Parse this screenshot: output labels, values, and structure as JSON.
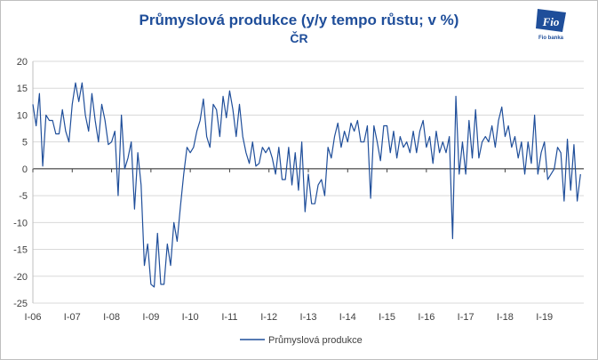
{
  "title": "Průmyslová produkce (y/y tempo růstu; v %)",
  "subtitle": "ČR",
  "logo_text": "Fio banka",
  "colors": {
    "series": "#1f4e9a",
    "grid": "#d9d9d9",
    "title": "#1f4e9a",
    "axis_text": "#404040"
  },
  "chart_data": {
    "type": "line",
    "title": "Průmyslová produkce (y/y tempo růstu; v %)",
    "subtitle": "ČR",
    "xlabel": "",
    "ylabel": "",
    "ylim": [
      -25,
      20
    ],
    "yticks": [
      20,
      15,
      10,
      5,
      0,
      -5,
      -10,
      -15,
      -20,
      -25
    ],
    "xtick_labels": [
      "I-06",
      "I-07",
      "I-08",
      "I-09",
      "I-10",
      "I-11",
      "I-12",
      "I-13",
      "I-14",
      "I-15",
      "I-16",
      "I-17",
      "I-18",
      "I-19"
    ],
    "grid": "horizontal",
    "legend_position": "bottom",
    "series": [
      {
        "name": "Průmyslová produkce",
        "start": "2006-01",
        "frequency": "monthly",
        "values": [
          12,
          8,
          14,
          0.5,
          10,
          9,
          9,
          6.5,
          6.5,
          11,
          7,
          5,
          12,
          16,
          12.5,
          16,
          10,
          7,
          14,
          9,
          5,
          12,
          9,
          4.5,
          5,
          7,
          -5,
          10,
          0,
          2,
          5,
          -7.5,
          3,
          -3,
          -18,
          -14,
          -21.5,
          -22,
          -12,
          -21.5,
          -21.5,
          -14,
          -18,
          -10,
          -13.5,
          -7,
          -1,
          4,
          3,
          4,
          7,
          9,
          13,
          6,
          4,
          12,
          11,
          6,
          13.5,
          9.5,
          14.5,
          11,
          6,
          12,
          6,
          3,
          1,
          5,
          0.5,
          1,
          4,
          3,
          4,
          2,
          -1,
          4,
          -2,
          -2,
          4,
          -3,
          3,
          -4,
          5,
          -8,
          -1,
          -6.5,
          -6.5,
          -3,
          -2,
          -5,
          4,
          2,
          6,
          8.5,
          4,
          7,
          5,
          8.5,
          7,
          9,
          5,
          5,
          8,
          -5.5,
          8,
          5,
          1.5,
          8,
          8,
          3,
          7,
          2,
          6,
          4,
          5,
          3,
          7,
          3,
          7,
          9,
          4,
          6,
          1,
          7,
          3,
          5,
          3,
          6,
          -13,
          13.5,
          -1,
          5,
          -1,
          9,
          2,
          11,
          2,
          5,
          6,
          5,
          8,
          4,
          9,
          11.5,
          6,
          8,
          4,
          6,
          2,
          5,
          -1,
          5,
          1,
          10,
          -1,
          3,
          5,
          -2,
          -1,
          0,
          4,
          3,
          -6,
          5.5,
          -4,
          4.5,
          -6,
          -1
        ]
      }
    ]
  }
}
